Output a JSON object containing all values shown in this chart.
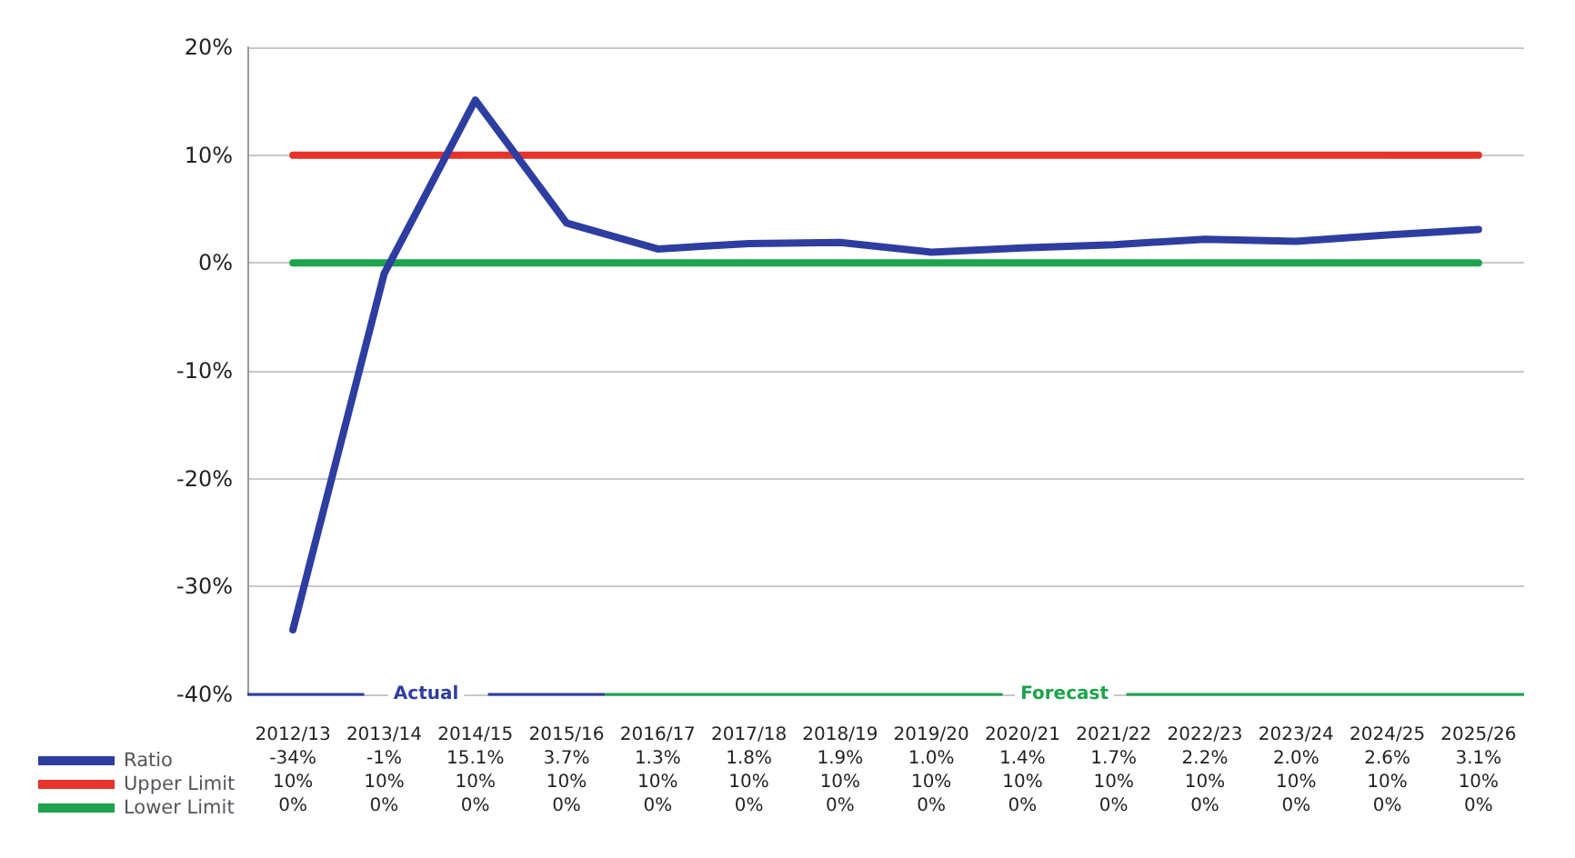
{
  "chart_data": {
    "type": "line",
    "categories": [
      "2012/13",
      "2013/14",
      "2014/15",
      "2015/16",
      "2016/17",
      "2017/18",
      "2018/19",
      "2019/20",
      "2020/21",
      "2021/22",
      "2022/23",
      "2023/24",
      "2024/25",
      "2025/26"
    ],
    "series": [
      {
        "name": "Ratio",
        "color": "#2e3da0",
        "values": [
          -34,
          -1,
          15.1,
          3.7,
          1.3,
          1.8,
          1.9,
          1.0,
          1.4,
          1.7,
          2.2,
          2.0,
          2.6,
          3.1
        ],
        "value_labels": [
          "-34%",
          "-1%",
          "15.1%",
          "3.7%",
          "1.3%",
          "1.8%",
          "1.9%",
          "1.0%",
          "1.4%",
          "1.7%",
          "2.2%",
          "2.0%",
          "2.6%",
          "3.1%"
        ]
      },
      {
        "name": "Upper Limit",
        "color": "#e8322c",
        "values": [
          10,
          10,
          10,
          10,
          10,
          10,
          10,
          10,
          10,
          10,
          10,
          10,
          10,
          10
        ],
        "value_labels": [
          "10%",
          "10%",
          "10%",
          "10%",
          "10%",
          "10%",
          "10%",
          "10%",
          "10%",
          "10%",
          "10%",
          "10%",
          "10%",
          "10%"
        ]
      },
      {
        "name": "Lower Limit",
        "color": "#1ca34c",
        "values": [
          0,
          0,
          0,
          0,
          0,
          0,
          0,
          0,
          0,
          0,
          0,
          0,
          0,
          0
        ],
        "value_labels": [
          "0%",
          "0%",
          "0%",
          "0%",
          "0%",
          "0%",
          "0%",
          "0%",
          "0%",
          "0%",
          "0%",
          "0%",
          "0%",
          "0%"
        ]
      }
    ],
    "ylim": [
      -40,
      20
    ],
    "yticks": [
      {
        "value": -40,
        "label": "-40%"
      },
      {
        "value": -30,
        "label": "-30%"
      },
      {
        "value": -20,
        "label": "-20%"
      },
      {
        "value": -10,
        "label": "-10%"
      },
      {
        "value": 0,
        "label": "0%"
      },
      {
        "value": 10,
        "label": "10%"
      },
      {
        "value": 20,
        "label": "20%"
      }
    ],
    "annotations": [
      "Actual",
      "Forecast"
    ],
    "grid": "y",
    "legend": "bottom left",
    "marker": "none",
    "line_style": "solid"
  }
}
